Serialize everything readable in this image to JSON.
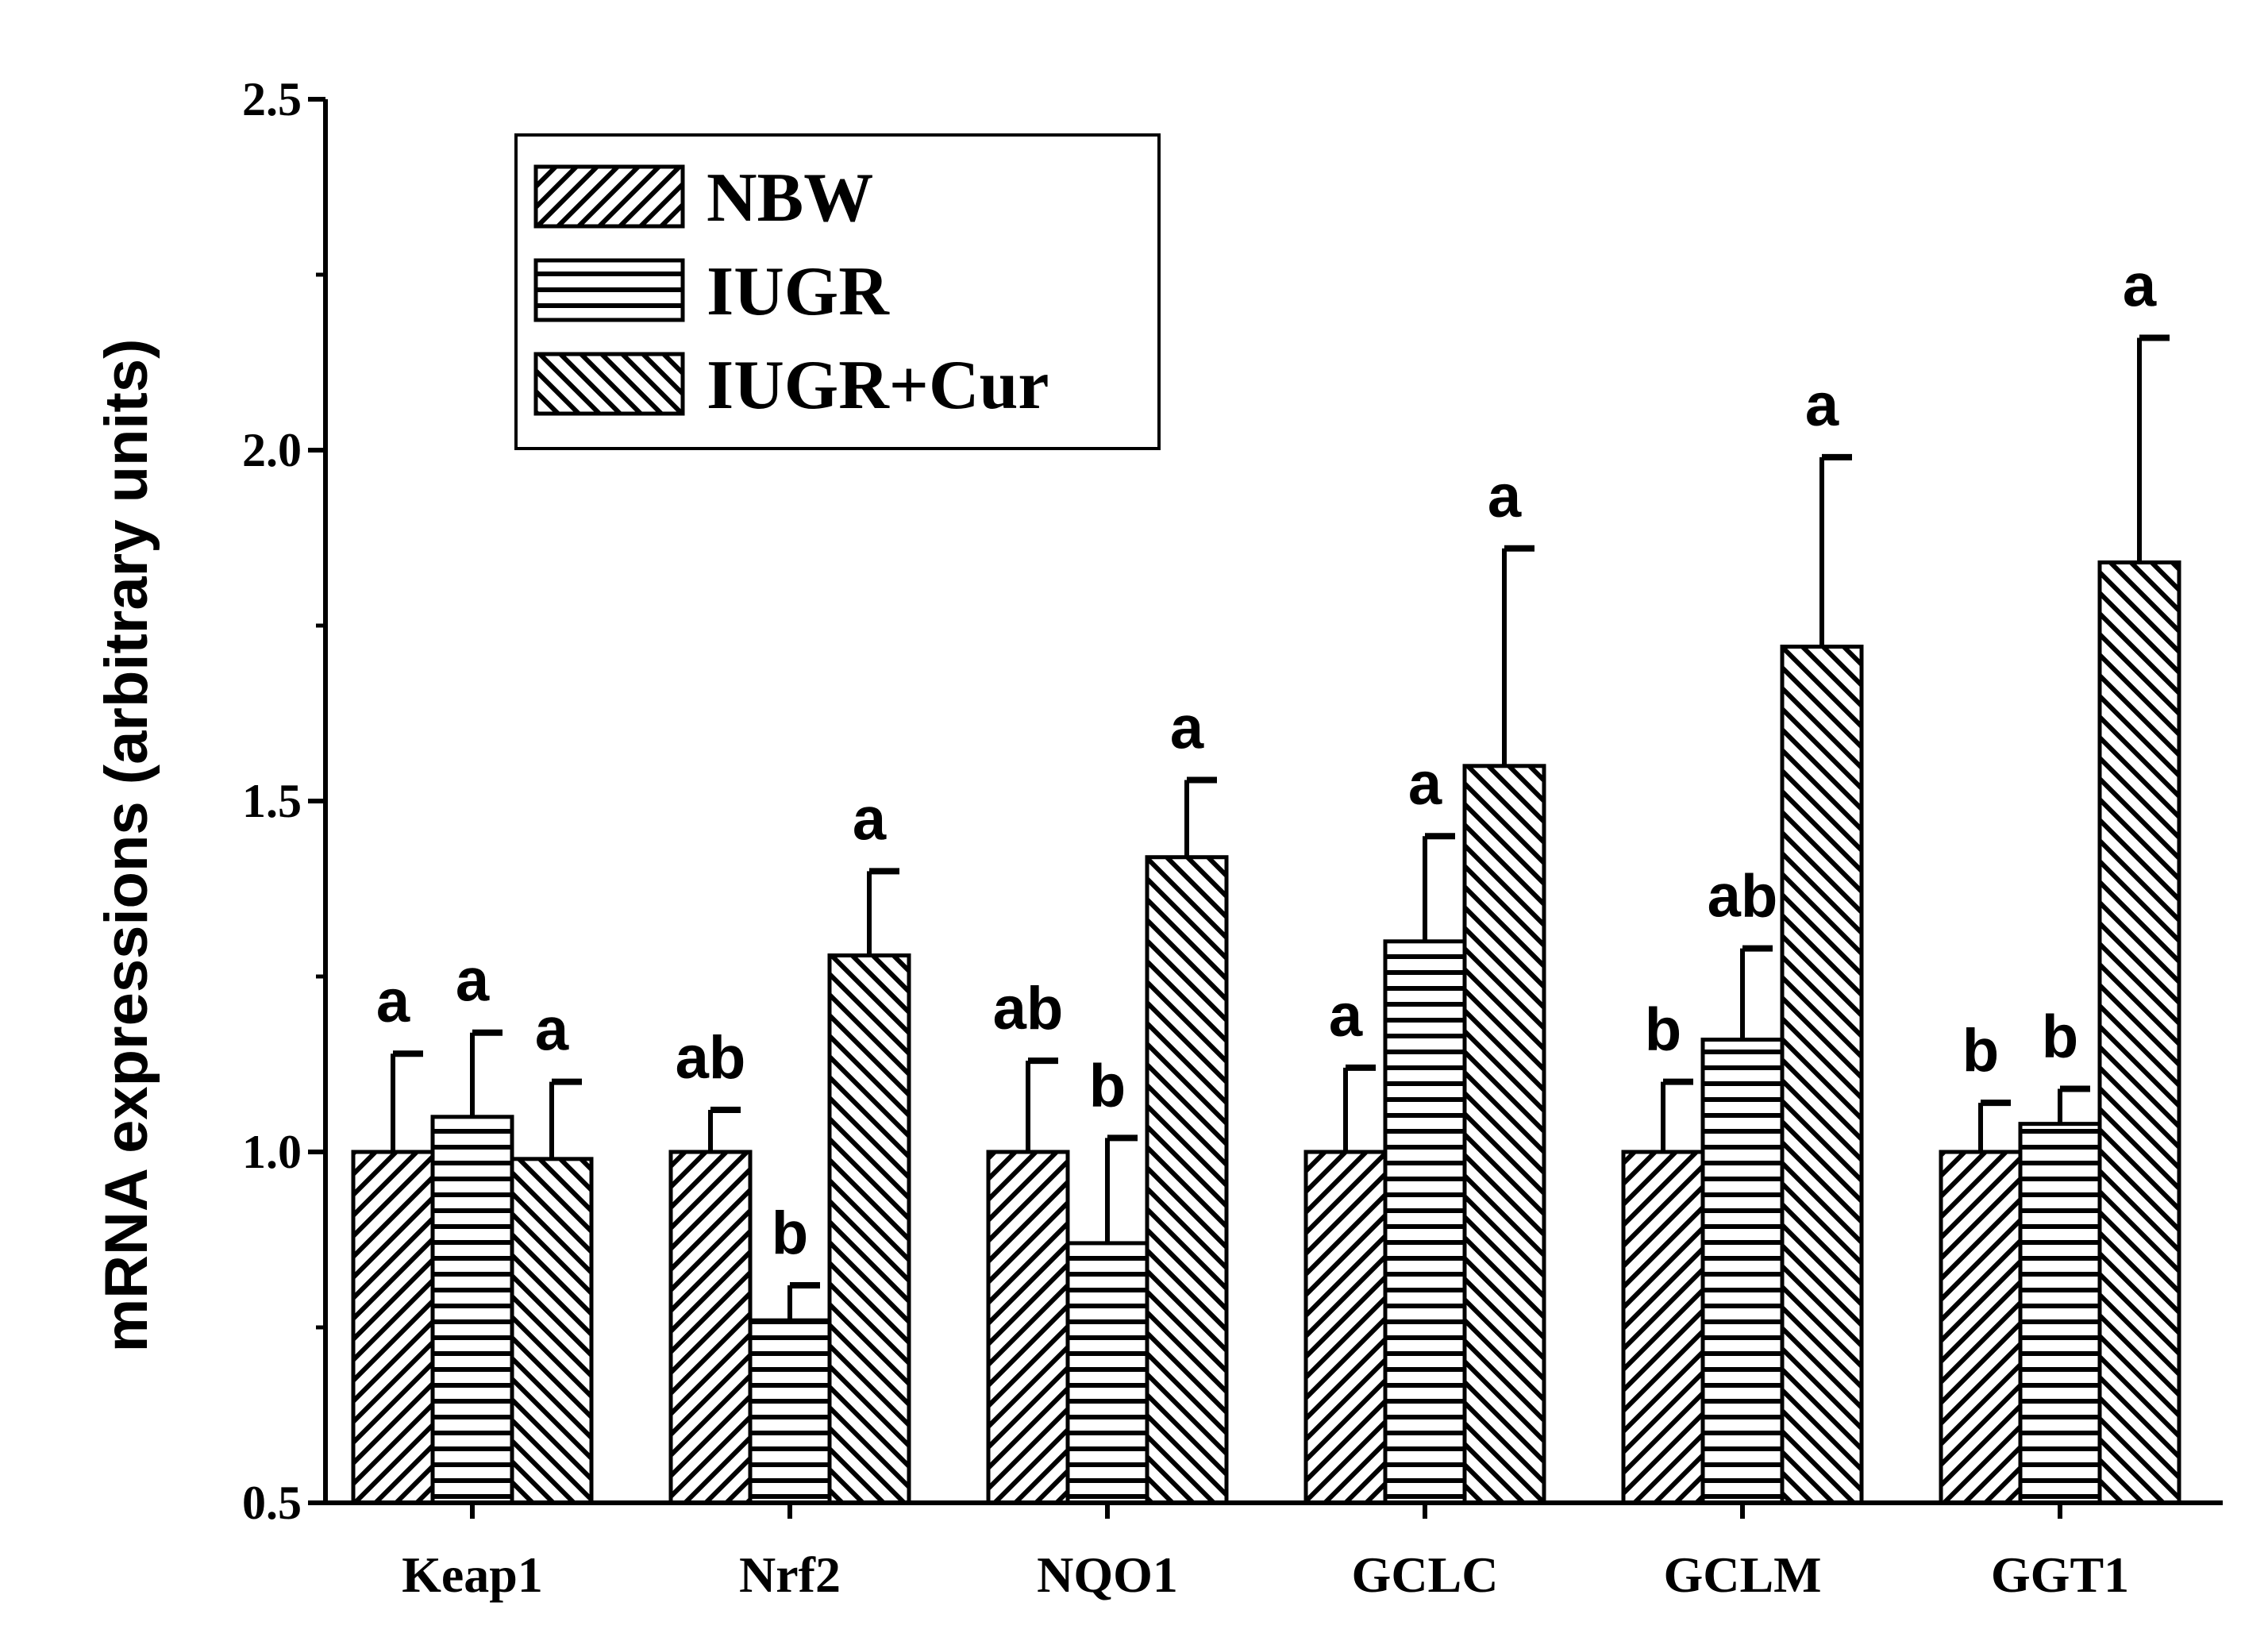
{
  "chart_data": {
    "type": "bar",
    "title": "",
    "xlabel": "",
    "ylabel": "mRNA expressions (arbitrary units)",
    "ylim": [
      0.5,
      2.5
    ],
    "yticks": [
      "0.5",
      "1.0",
      "1.5",
      "2.0",
      "2.5"
    ],
    "grid": false,
    "legend_position": "top-left",
    "categories": [
      "Keap1",
      "Nrf2",
      "NQO1",
      "GCLC",
      "GCLM",
      "GGT1"
    ],
    "series": [
      {
        "name": "NBW",
        "pattern": "diagonal-forward",
        "values": [
          1.0,
          1.0,
          1.0,
          1.0,
          1.0,
          1.0
        ],
        "errors": [
          0.14,
          0.06,
          0.13,
          0.12,
          0.1,
          0.07
        ],
        "labels": [
          "a",
          "ab",
          "ab",
          "a",
          "b",
          "b"
        ]
      },
      {
        "name": "IUGR",
        "pattern": "horizontal",
        "values": [
          1.05,
          0.76,
          0.87,
          1.3,
          1.16,
          1.04
        ],
        "errors": [
          0.12,
          0.05,
          0.15,
          0.15,
          0.13,
          0.05
        ],
        "labels": [
          "a",
          "b",
          "b",
          "a",
          "ab",
          "b"
        ]
      },
      {
        "name": "IUGR+Cur",
        "pattern": "diagonal-backward",
        "values": [
          0.99,
          1.28,
          1.42,
          1.55,
          1.72,
          1.84
        ],
        "errors": [
          0.11,
          0.12,
          0.11,
          0.31,
          0.27,
          0.32
        ],
        "labels": [
          "a",
          "a",
          "a",
          "a",
          "a",
          "a"
        ]
      }
    ]
  }
}
